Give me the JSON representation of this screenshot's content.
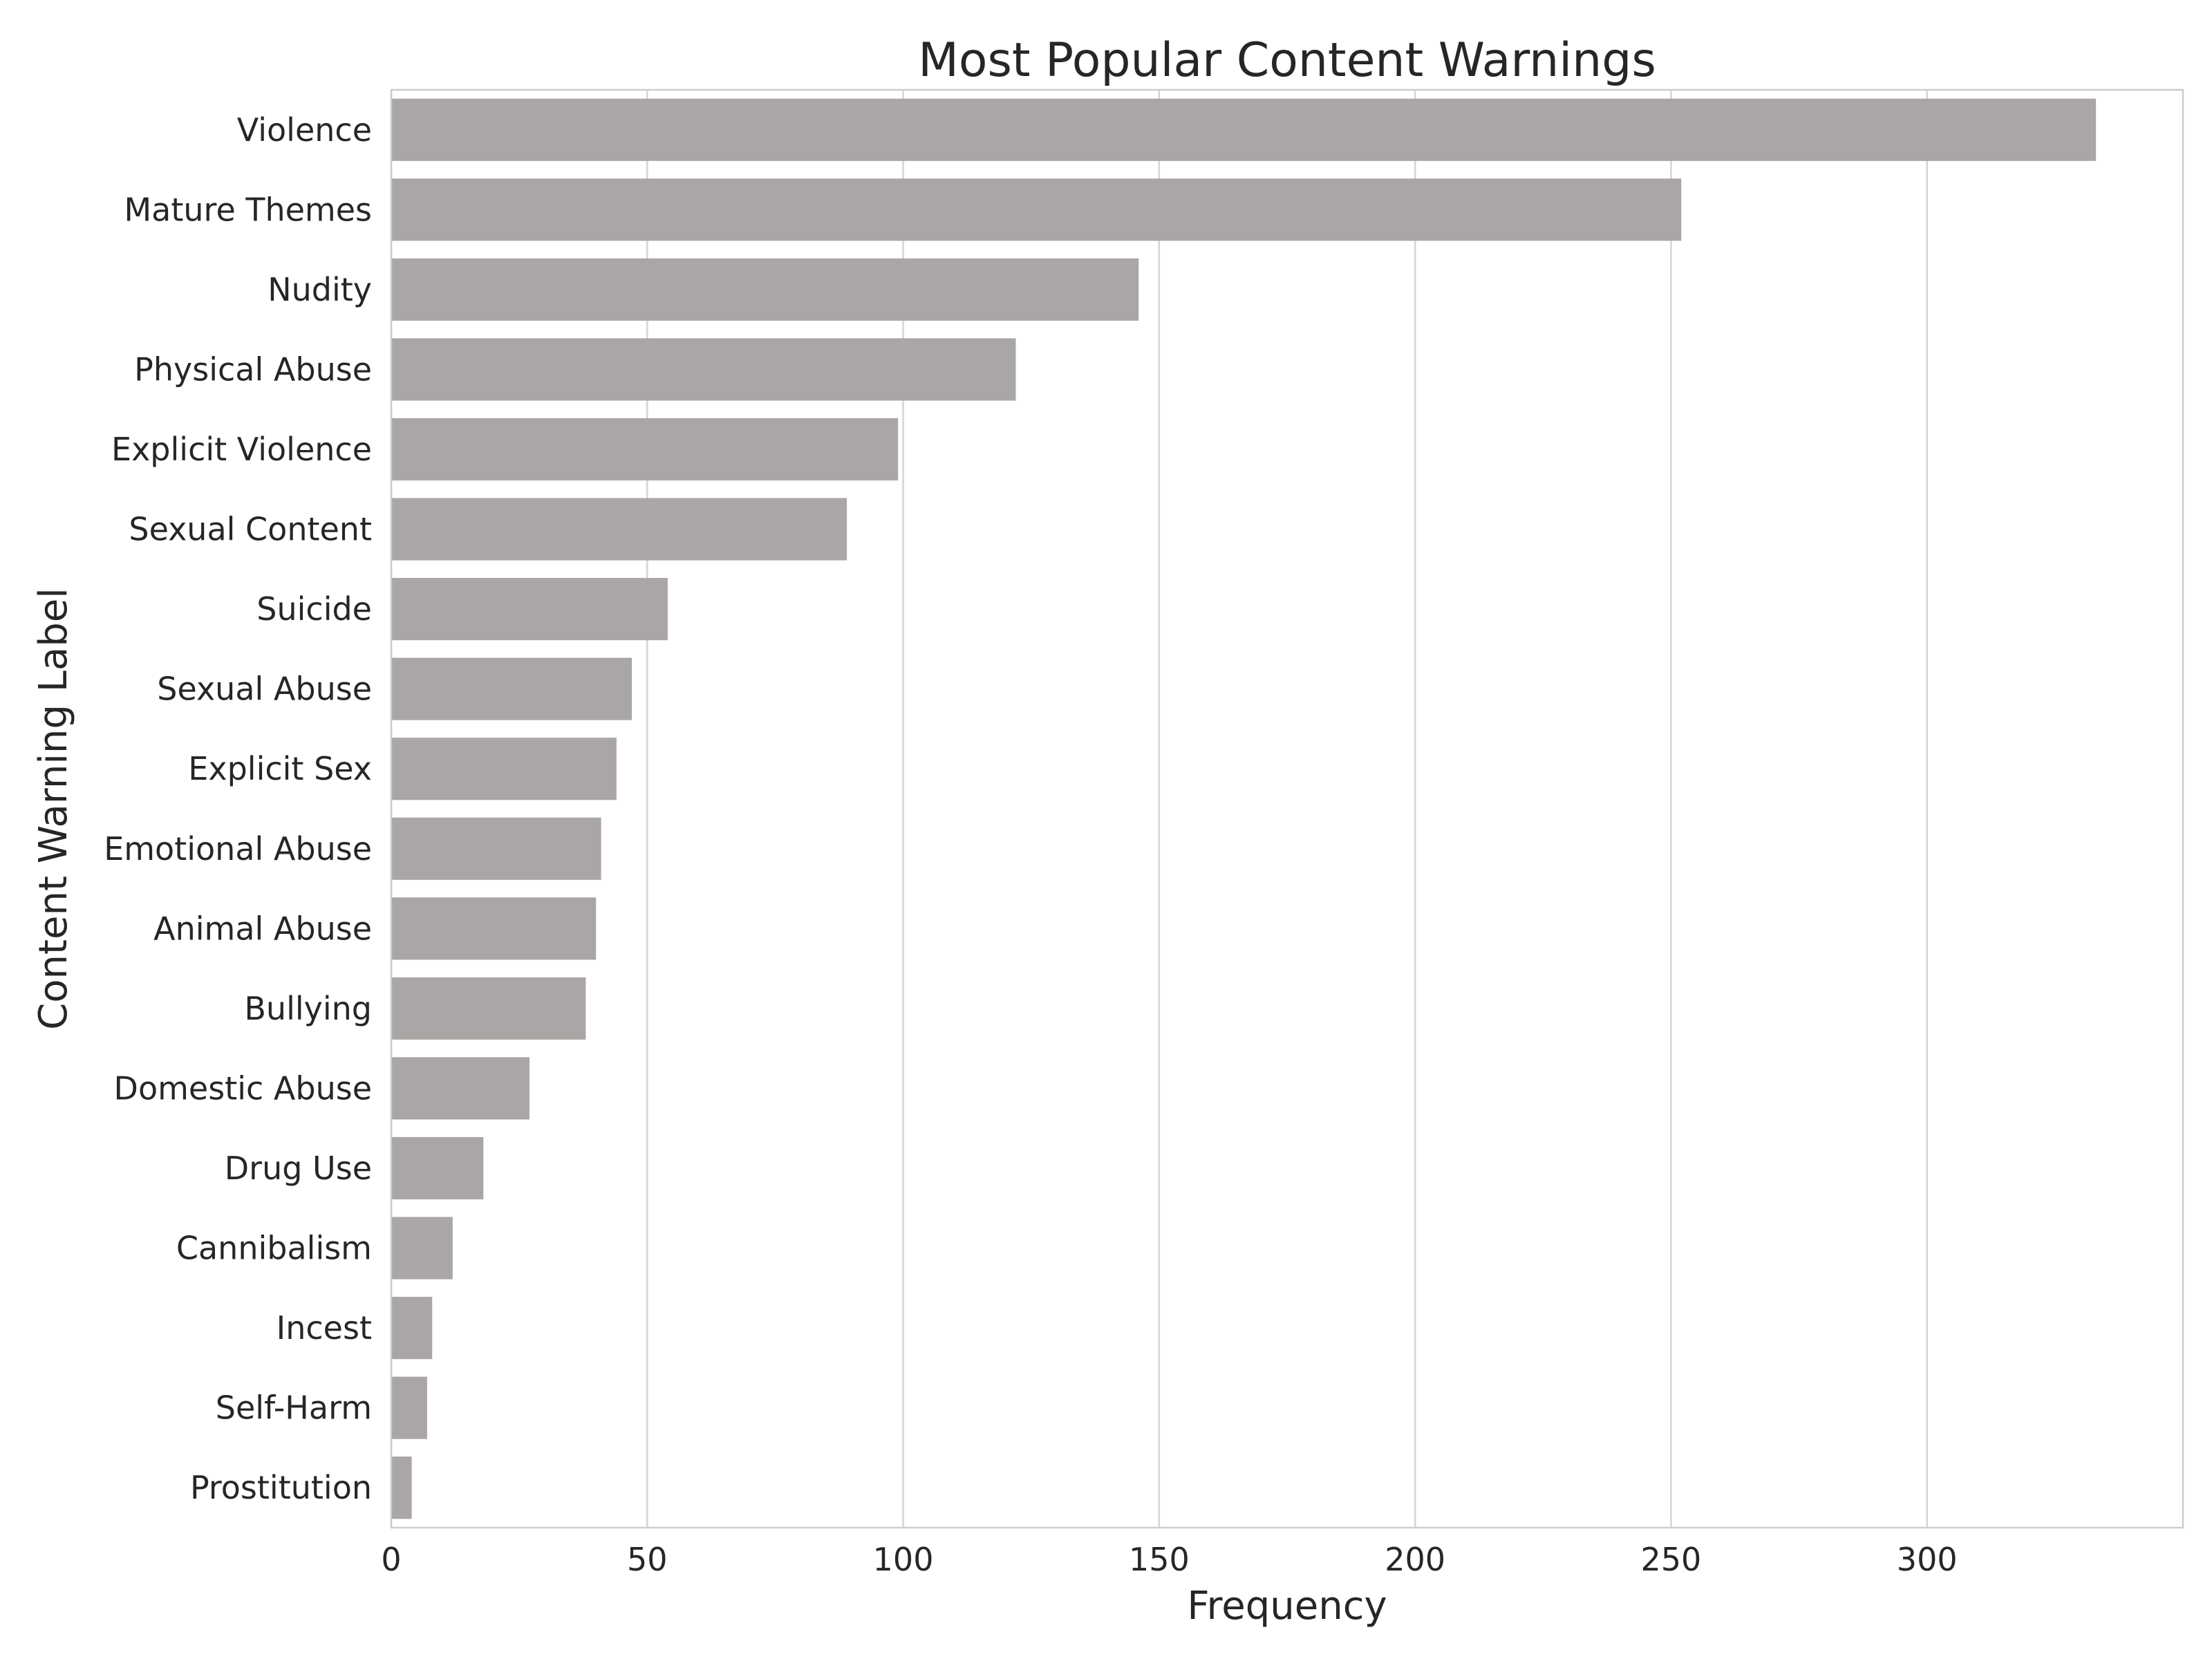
{
  "chart_data": {
    "type": "bar",
    "orientation": "horizontal",
    "title": "Most Popular Content Warnings",
    "xlabel": "Frequency",
    "ylabel": "Content Warning Label",
    "categories": [
      "Violence",
      "Mature Themes",
      "Nudity",
      "Physical Abuse",
      "Explicit Violence",
      "Sexual Content",
      "Suicide",
      "Sexual Abuse",
      "Explicit Sex",
      "Emotional Abuse",
      "Animal Abuse",
      "Bullying",
      "Domestic Abuse",
      "Drug Use",
      "Cannibalism",
      "Incest",
      "Self-Harm",
      "Prostitution"
    ],
    "values": [
      333,
      252,
      146,
      122,
      99,
      89,
      54,
      47,
      44,
      41,
      40,
      38,
      27,
      18,
      12,
      8,
      7,
      4
    ],
    "xlim": [
      0,
      350
    ],
    "xticks": [
      0,
      50,
      100,
      150,
      200,
      250,
      300
    ],
    "grid": "vertical",
    "bar_color": "#aaa6a5",
    "grid_color": "#d4d4d4",
    "spine_color": "#cccccc",
    "text_color": "#262626"
  }
}
